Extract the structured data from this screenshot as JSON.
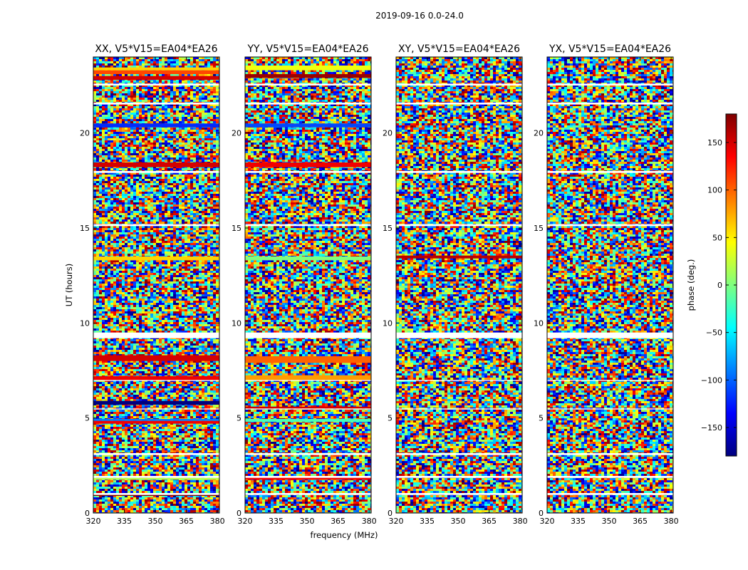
{
  "figure": {
    "title": "2019-09-16 0.0-24.0",
    "xlabel": "frequency (MHz)",
    "ylabel": "UT (hours)"
  },
  "colorbar": {
    "label": "phase (deg.)",
    "range": [
      -180,
      180
    ],
    "ticks": [
      150,
      100,
      50,
      0,
      -50,
      -100,
      -150
    ],
    "tick_labels": [
      "150",
      "100",
      "50",
      "0",
      "−50",
      "−100",
      "−150"
    ],
    "colormap": [
      "#00007f",
      "#0000ff",
      "#007fff",
      "#00ffff",
      "#7fff7f",
      "#ffff00",
      "#ff7f00",
      "#ff0000",
      "#7f0000"
    ]
  },
  "chart_data": {
    "type": "heatmap",
    "xlim": [
      320,
      381
    ],
    "ylim": [
      0,
      24
    ],
    "x_ticks": [
      320,
      335,
      350,
      365,
      380
    ],
    "x_tick_labels": [
      "320",
      "335",
      "350",
      "365",
      "380"
    ],
    "y_ticks": [
      0,
      5,
      10,
      15,
      20
    ],
    "y_tick_labels": [
      "0",
      "5",
      "10",
      "15",
      "20"
    ],
    "flagged_ut_bands": [
      [
        0.95,
        1.05
      ],
      [
        1.85,
        1.95
      ],
      [
        3.05,
        3.15
      ],
      [
        5.45,
        5.5
      ],
      [
        6.95,
        7.0
      ],
      [
        9.2,
        9.5
      ],
      [
        15.1,
        15.2
      ],
      [
        17.9,
        18.0
      ],
      [
        21.5,
        21.6
      ],
      [
        22.5,
        22.6
      ]
    ],
    "panels": [
      {
        "title": "XX, V5*V15=EA04*EA26",
        "features": [
          {
            "ut": [
              0.9,
              1.05
            ],
            "phase": 180
          },
          {
            "ut": [
              1.75,
              1.85
            ],
            "phase": 20
          },
          {
            "ut": [
              4.7,
              4.85
            ],
            "phase": 140
          },
          {
            "ut": [
              4.85,
              4.95
            ],
            "phase": -90
          },
          {
            "ut": [
              5.7,
              5.9
            ],
            "phase": -180
          },
          {
            "ut": [
              7.0,
              7.2
            ],
            "phase": 140
          },
          {
            "ut": [
              8.0,
              8.3
            ],
            "phase": 150
          },
          {
            "ut": [
              13.3,
              13.5
            ],
            "phase": 60
          },
          {
            "ut": [
              18.2,
              18.45
            ],
            "phase": 150
          },
          {
            "ut": [
              20.3,
              20.5
            ],
            "phase": -120
          },
          {
            "ut": [
              22.8,
              23.0
            ],
            "phase": 150
          },
          {
            "ut": [
              23.1,
              23.3
            ],
            "phase": 110
          },
          {
            "ut": [
              23.3,
              23.45
            ],
            "phase": 60
          }
        ]
      },
      {
        "title": "YY, V5*V15=EA04*EA26",
        "features": [
          {
            "ut": [
              1.75,
              1.9
            ],
            "phase": 140
          },
          {
            "ut": [
              4.8,
              4.95
            ],
            "phase": -20
          },
          {
            "ut": [
              5.5,
              5.6
            ],
            "phase": 150
          },
          {
            "ut": [
              7.0,
              7.25
            ],
            "phase": 80
          },
          {
            "ut": [
              7.9,
              8.25
            ],
            "phase": 100
          },
          {
            "ut": [
              13.3,
              13.5
            ],
            "phase": 0
          },
          {
            "ut": [
              18.2,
              18.45
            ],
            "phase": 140
          },
          {
            "ut": [
              20.3,
              20.5
            ],
            "phase": -110
          },
          {
            "ut": [
              22.9,
              23.1
            ],
            "phase": 170
          },
          {
            "ut": [
              23.3,
              23.55
            ],
            "phase": 40
          }
        ]
      },
      {
        "title": "XY, V5*V15=EA04*EA26",
        "features": [
          {
            "ut": [
              13.4,
              13.55
            ],
            "phase": 160
          }
        ]
      },
      {
        "title": "YX, V5*V15=EA04*EA26",
        "features": []
      }
    ]
  }
}
